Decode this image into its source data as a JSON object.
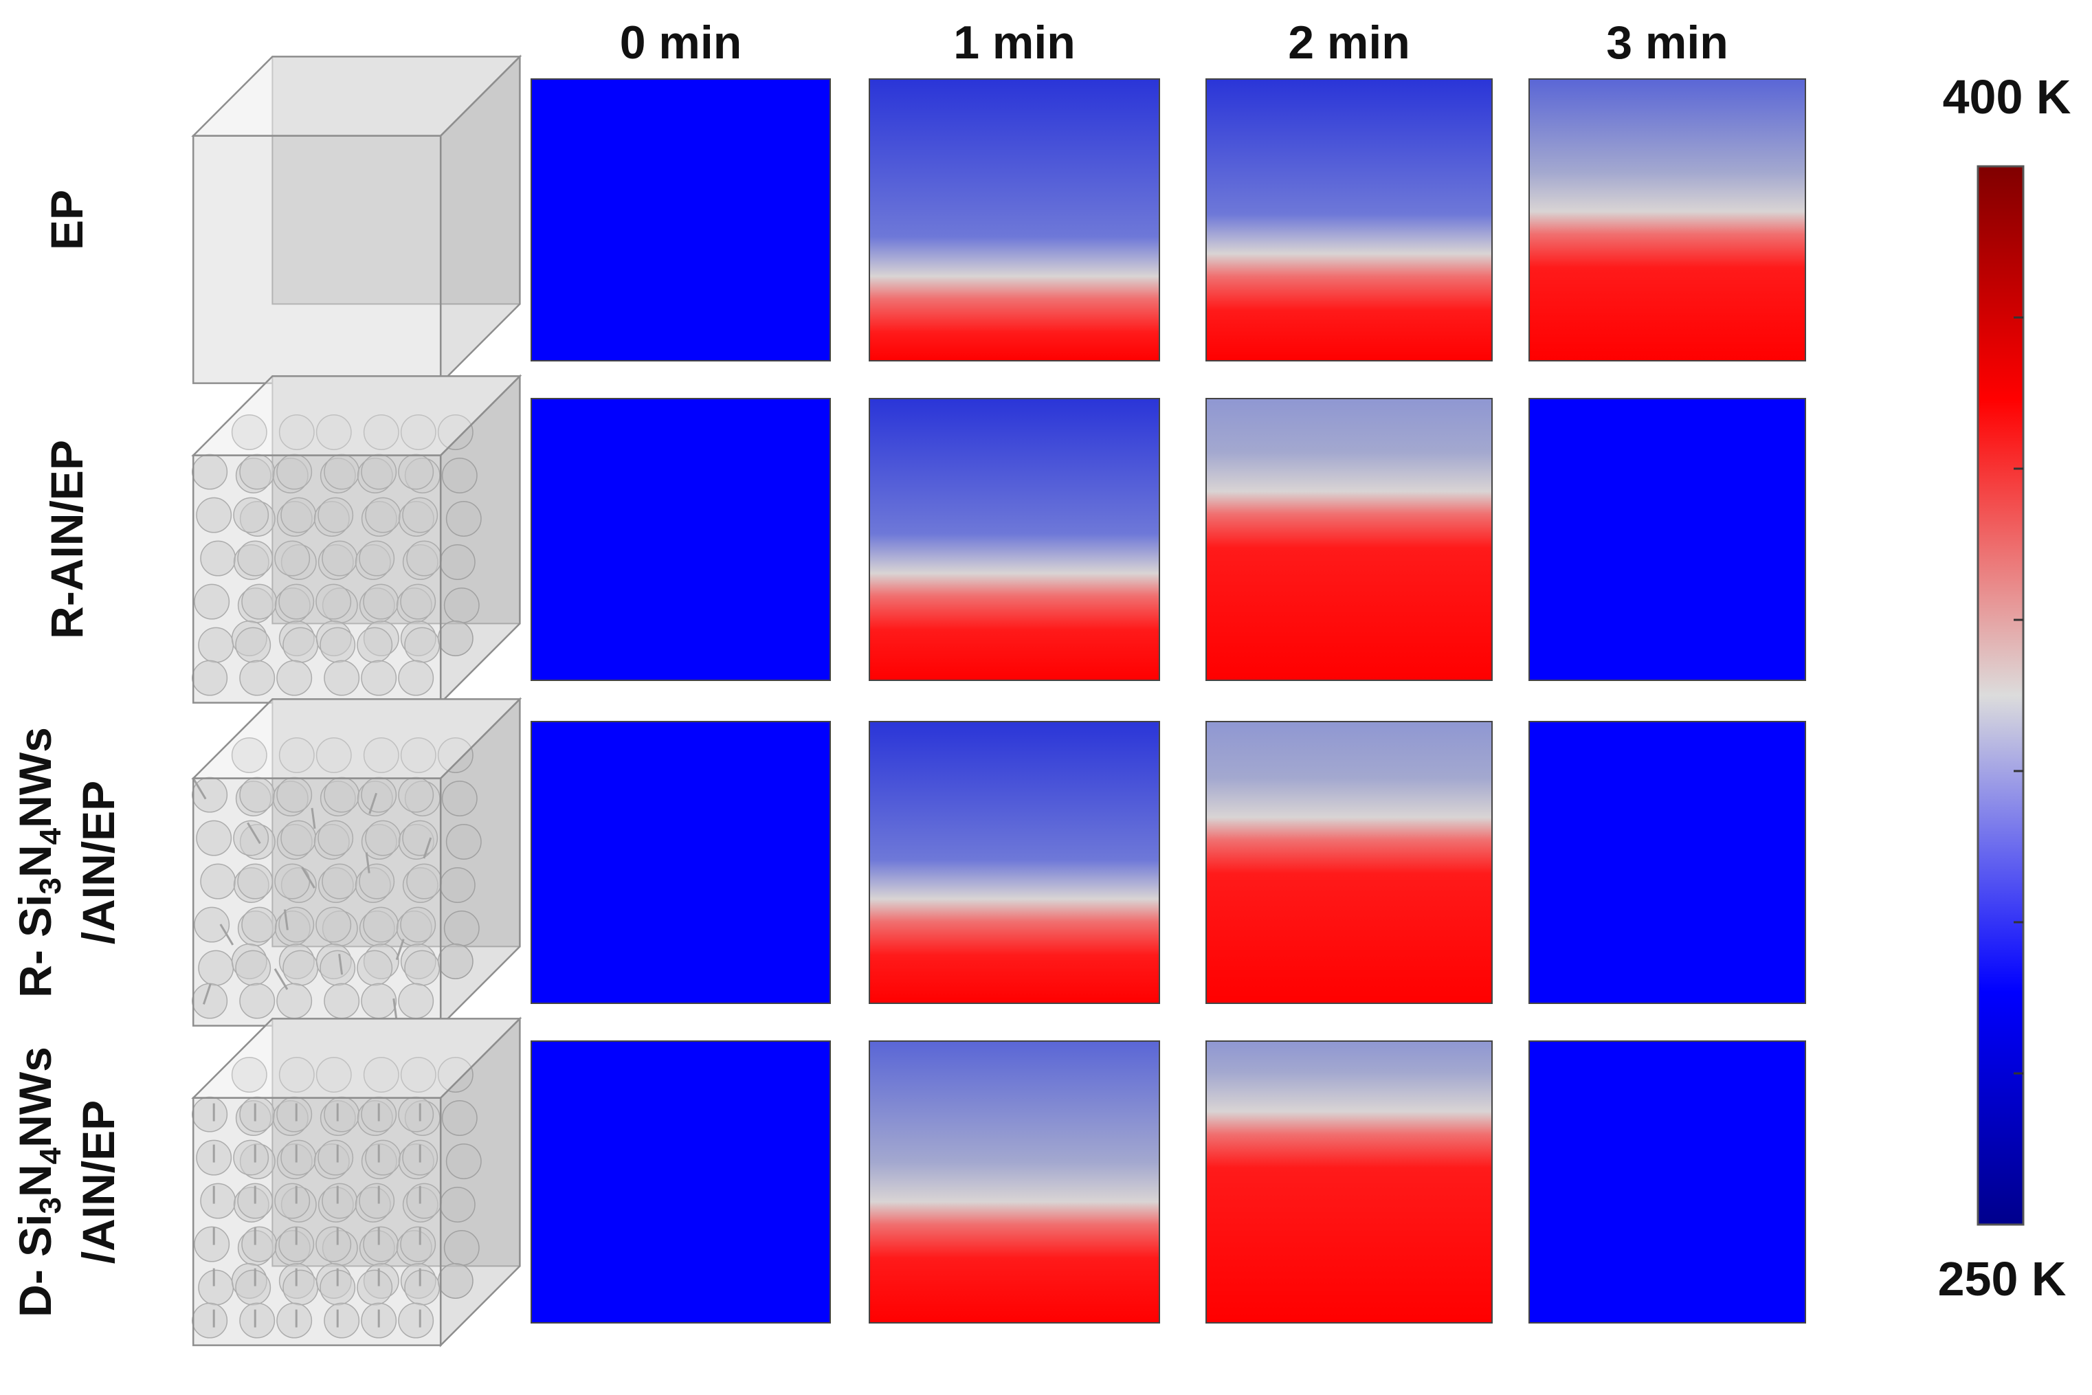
{
  "time_labels": [
    "0 min",
    "1 min",
    "2 min",
    "3 min"
  ],
  "rows": [
    {
      "id": "ep",
      "label_parts": [
        {
          "t": "EP"
        }
      ],
      "label_lines": [
        {
          "parts": [
            {
              "t": "EP"
            }
          ]
        }
      ],
      "model": "cube",
      "front": [
        0.0,
        0.7,
        0.62,
        0.47
      ]
    },
    {
      "id": "r-ain-ep",
      "label_lines": [
        {
          "parts": [
            {
              "t": "R-AIN/EP"
            }
          ]
        }
      ],
      "model": "cube-with-spheres",
      "front": [
        0.0,
        0.62,
        0.33,
        0.0
      ]
    },
    {
      "id": "r-si3n4nws-ain-ep",
      "label_lines": [
        {
          "parts": [
            {
              "t": "R- Si"
            },
            {
              "sub": "3"
            },
            {
              "t": "N"
            },
            {
              "sub": "4"
            },
            {
              "t": "NWs"
            }
          ]
        },
        {
          "parts": [
            {
              "t": "/AIN/EP"
            }
          ]
        }
      ],
      "model": "cube-with-spheres-and-random-wires",
      "front": [
        0.0,
        0.63,
        0.34,
        0.0
      ]
    },
    {
      "id": "d-si3n4nws-ain-ep",
      "label_lines": [
        {
          "parts": [
            {
              "t": "D- Si"
            },
            {
              "sub": "3"
            },
            {
              "t": "N"
            },
            {
              "sub": "4"
            },
            {
              "t": "NWs"
            }
          ]
        },
        {
          "parts": [
            {
              "t": "/AIN/EP"
            }
          ]
        }
      ],
      "model": "cube-with-spheres-and-aligned-wires",
      "front": [
        0.0,
        0.57,
        0.25,
        0.0
      ]
    }
  ],
  "colorbar": {
    "max_label": "400 K",
    "min_label": "250 K",
    "min": 250,
    "max": 400,
    "colors": [
      "#000080",
      "#0000ff",
      "#d8d8d8",
      "#ff0000",
      "#800000"
    ]
  }
}
